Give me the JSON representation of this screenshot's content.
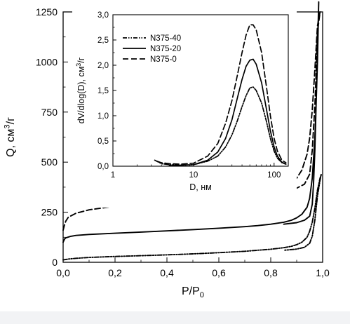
{
  "chart_data": [
    {
      "id": "main",
      "type": "line",
      "title": "",
      "xlabel": "P/P",
      "xlabel_sub": "0",
      "ylabel_parts": [
        "Q, см",
        "3",
        "/г"
      ],
      "xlim": [
        0.0,
        1.0
      ],
      "ylim": [
        0,
        1250
      ],
      "xticks": [
        0.0,
        0.2,
        0.4,
        0.6,
        0.8,
        1.0
      ],
      "xtick_labels": [
        "0,0",
        "0,2",
        "0,4",
        "0,6",
        "0,8",
        "1,0"
      ],
      "yticks": [
        0,
        250,
        500,
        750,
        1000,
        1250
      ],
      "ytick_labels": [
        "0",
        "250",
        "500",
        "750",
        "1000",
        "1250"
      ],
      "grid": false,
      "series": [
        {
          "name": "N375-40",
          "style": "dashdotdot",
          "points": [
            [
              0.0,
              12
            ],
            [
              0.02,
              16
            ],
            [
              0.05,
              20
            ],
            [
              0.1,
              24
            ],
            [
              0.2,
              29
            ],
            [
              0.3,
              33
            ],
            [
              0.4,
              37
            ],
            [
              0.5,
              42
            ],
            [
              0.6,
              48
            ],
            [
              0.7,
              55
            ],
            [
              0.8,
              65
            ],
            [
              0.85,
              73
            ],
            [
              0.88,
              80
            ],
            [
              0.9,
              88
            ],
            [
              0.92,
              100
            ],
            [
              0.94,
              125
            ],
            [
              0.95,
              155
            ],
            [
              0.96,
              200
            ],
            [
              0.97,
              270
            ],
            [
              0.98,
              360
            ],
            [
              0.99,
              420
            ],
            [
              0.995,
              440
            ],
            [
              0.99,
              410
            ],
            [
              0.98,
              330
            ],
            [
              0.97,
              210
            ],
            [
              0.96,
              130
            ],
            [
              0.95,
              95
            ],
            [
              0.93,
              75
            ],
            [
              0.9,
              66
            ],
            [
              0.85,
              60
            ]
          ]
        },
        {
          "name": "N375-20",
          "style": "solid",
          "points": [
            [
              0.0,
              100
            ],
            [
              0.005,
              115
            ],
            [
              0.01,
              122
            ],
            [
              0.03,
              130
            ],
            [
              0.05,
              134
            ],
            [
              0.1,
              139
            ],
            [
              0.2,
              145
            ],
            [
              0.3,
              151
            ],
            [
              0.4,
              157
            ],
            [
              0.5,
              163
            ],
            [
              0.6,
              170
            ],
            [
              0.7,
              178
            ],
            [
              0.75,
              183
            ],
            [
              0.8,
              190
            ],
            [
              0.85,
              200
            ],
            [
              0.88,
              210
            ],
            [
              0.9,
              222
            ],
            [
              0.92,
              240
            ],
            [
              0.94,
              275
            ],
            [
              0.95,
              320
            ],
            [
              0.96,
              420
            ],
            [
              0.97,
              620
            ],
            [
              0.975,
              800
            ],
            [
              0.98,
              1050
            ],
            [
              0.985,
              1300
            ],
            [
              0.98,
              1000
            ],
            [
              0.975,
              800
            ],
            [
              0.97,
              560
            ],
            [
              0.965,
              400
            ],
            [
              0.96,
              290
            ],
            [
              0.95,
              230
            ],
            [
              0.93,
              210
            ],
            [
              0.9,
              198
            ],
            [
              0.85,
              190
            ]
          ]
        },
        {
          "name": "N375-0",
          "style": "dashed",
          "points": [
            [
              0.0,
              160
            ],
            [
              0.005,
              185
            ],
            [
              0.01,
              205
            ],
            [
              0.02,
              225
            ],
            [
              0.05,
              245
            ],
            [
              0.1,
              262
            ],
            [
              0.2,
              280
            ],
            [
              0.3,
              292
            ],
            [
              0.4,
              302
            ],
            [
              0.5,
              312
            ],
            [
              0.6,
              322
            ],
            [
              0.7,
              335
            ],
            [
              0.75,
              343
            ],
            [
              0.8,
              355
            ],
            [
              0.85,
              375
            ],
            [
              0.88,
              395
            ],
            [
              0.9,
              420
            ],
            [
              0.92,
              460
            ],
            [
              0.94,
              540
            ],
            [
              0.95,
              620
            ],
            [
              0.96,
              760
            ],
            [
              0.97,
              960
            ],
            [
              0.98,
              1180
            ],
            [
              0.99,
              1250
            ],
            [
              0.98,
              1150
            ],
            [
              0.975,
              950
            ],
            [
              0.97,
              780
            ],
            [
              0.96,
              560
            ],
            [
              0.95,
              440
            ],
            [
              0.93,
              390
            ],
            [
              0.9,
              370
            ],
            [
              0.88,
              362
            ]
          ]
        }
      ]
    },
    {
      "id": "inset",
      "type": "line",
      "title": "",
      "xlabel": "D, нм",
      "ylabel_parts": [
        "dV/dlog(D), см",
        "3",
        "/г"
      ],
      "xscale": "log",
      "xlim": [
        1,
        150
      ],
      "ylim": [
        0,
        3.0
      ],
      "xticks": [
        1,
        10,
        100
      ],
      "xtick_labels": [
        "1",
        "10",
        "100"
      ],
      "yticks": [
        0,
        0.5,
        1.0,
        1.5,
        2.0,
        2.5,
        3.0
      ],
      "ytick_labels": [
        "0,0",
        "0,5",
        "1,0",
        "1,5",
        "2,0",
        "2,5",
        "3,0"
      ],
      "grid": false,
      "legend": "top-left",
      "series": [
        {
          "name": "N375-40",
          "style": "dashdotdot",
          "points": [
            [
              3.3,
              0.12
            ],
            [
              4,
              0.05
            ],
            [
              5,
              0.03
            ],
            [
              7,
              0.02
            ],
            [
              10,
              0.03
            ],
            [
              15,
              0.1
            ],
            [
              20,
              0.2
            ],
            [
              25,
              0.38
            ],
            [
              30,
              0.62
            ],
            [
              35,
              0.9
            ],
            [
              40,
              1.18
            ],
            [
              45,
              1.4
            ],
            [
              50,
              1.55
            ],
            [
              55,
              1.57
            ],
            [
              60,
              1.5
            ],
            [
              70,
              1.25
            ],
            [
              80,
              0.9
            ],
            [
              90,
              0.55
            ],
            [
              100,
              0.3
            ],
            [
              110,
              0.16
            ],
            [
              125,
              0.07
            ],
            [
              140,
              0.04
            ]
          ]
        },
        {
          "name": "N375-20",
          "style": "solid",
          "points": [
            [
              5,
              0.01
            ],
            [
              7,
              0.02
            ],
            [
              10,
              0.03
            ],
            [
              15,
              0.12
            ],
            [
              20,
              0.28
            ],
            [
              25,
              0.55
            ],
            [
              30,
              0.92
            ],
            [
              35,
              1.35
            ],
            [
              40,
              1.72
            ],
            [
              45,
              1.98
            ],
            [
              50,
              2.1
            ],
            [
              55,
              2.12
            ],
            [
              60,
              2.02
            ],
            [
              70,
              1.65
            ],
            [
              80,
              1.15
            ],
            [
              90,
              0.7
            ],
            [
              100,
              0.38
            ],
            [
              110,
              0.2
            ],
            [
              125,
              0.08
            ],
            [
              140,
              0.04
            ]
          ]
        },
        {
          "name": "N375-0",
          "style": "dashed",
          "points": [
            [
              3.5,
              0.1
            ],
            [
              4,
              0.07
            ],
            [
              5,
              0.05
            ],
            [
              7,
              0.04
            ],
            [
              10,
              0.06
            ],
            [
              15,
              0.2
            ],
            [
              20,
              0.45
            ],
            [
              25,
              0.85
            ],
            [
              30,
              1.3
            ],
            [
              35,
              1.8
            ],
            [
              40,
              2.25
            ],
            [
              45,
              2.6
            ],
            [
              50,
              2.8
            ],
            [
              55,
              2.8
            ],
            [
              60,
              2.7
            ],
            [
              70,
              2.25
            ],
            [
              80,
              1.6
            ],
            [
              90,
              1.0
            ],
            [
              100,
              0.55
            ],
            [
              110,
              0.3
            ],
            [
              125,
              0.12
            ],
            [
              140,
              0.07
            ]
          ]
        }
      ]
    }
  ]
}
